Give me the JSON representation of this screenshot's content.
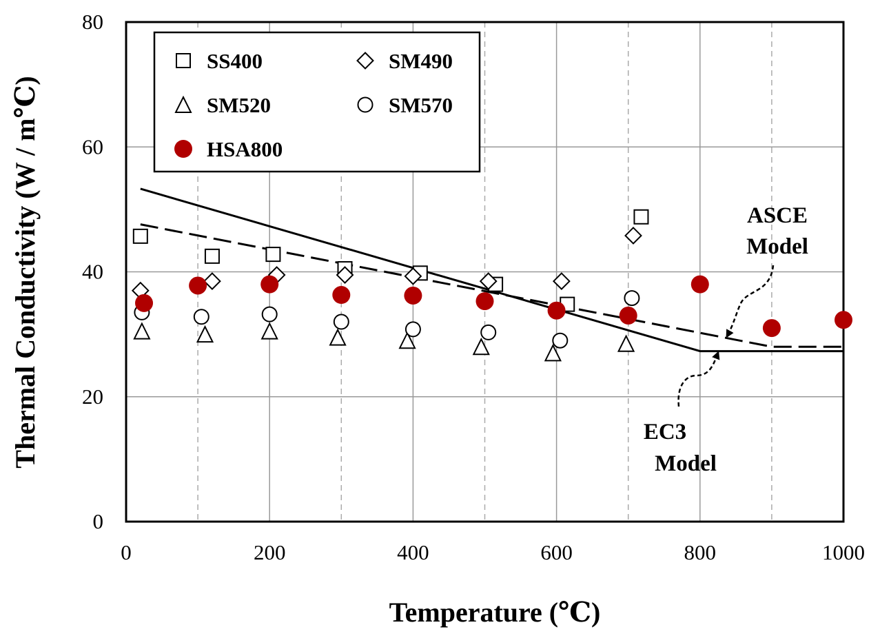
{
  "chart_data": {
    "type": "scatter",
    "xlabel": "Temperature (℃)",
    "ylabel": "Thermal Conductivity (W / m℃)",
    "xlim": [
      0,
      1000
    ],
    "ylim": [
      0,
      80
    ],
    "x_ticks": [
      0,
      200,
      400,
      600,
      800,
      1000
    ],
    "y_ticks": [
      0,
      20,
      40,
      60,
      80
    ],
    "grid": {
      "solid_x": [
        200,
        400,
        600,
        800
      ],
      "dashed_x": [
        100,
        300,
        500,
        700,
        900
      ],
      "solid_y": [
        20,
        40,
        60
      ]
    },
    "legend_position": "top-left",
    "series": [
      {
        "name": "SS400",
        "marker": "square",
        "points": [
          [
            20,
            45.7
          ],
          [
            120,
            42.5
          ],
          [
            205,
            42.8
          ],
          [
            305,
            40.5
          ],
          [
            410,
            39.8
          ],
          [
            515,
            38.0
          ],
          [
            615,
            34.8
          ],
          [
            718,
            48.8
          ]
        ]
      },
      {
        "name": "SM490",
        "marker": "diamond",
        "points": [
          [
            20,
            37.0
          ],
          [
            120,
            38.5
          ],
          [
            210,
            39.5
          ],
          [
            305,
            39.5
          ],
          [
            400,
            39.3
          ],
          [
            505,
            38.5
          ],
          [
            607,
            38.5
          ],
          [
            707,
            45.8
          ]
        ]
      },
      {
        "name": "SM520",
        "marker": "triangle",
        "points": [
          [
            22,
            30.5
          ],
          [
            110,
            30.0
          ],
          [
            200,
            30.5
          ],
          [
            295,
            29.5
          ],
          [
            392,
            29.0
          ],
          [
            495,
            28.0
          ],
          [
            595,
            27.0
          ],
          [
            697,
            28.5
          ]
        ]
      },
      {
        "name": "SM570",
        "marker": "circle",
        "points": [
          [
            22,
            33.5
          ],
          [
            105,
            32.8
          ],
          [
            200,
            33.2
          ],
          [
            300,
            32.0
          ],
          [
            400,
            30.8
          ],
          [
            505,
            30.3
          ],
          [
            605,
            29.0
          ],
          [
            705,
            35.8
          ]
        ]
      },
      {
        "name": "HSA800",
        "marker": "filled-circle",
        "color": "#b00000",
        "points": [
          [
            25,
            35.0
          ],
          [
            100,
            37.8
          ],
          [
            200,
            38.0
          ],
          [
            300,
            36.3
          ],
          [
            400,
            36.2
          ],
          [
            500,
            35.3
          ],
          [
            600,
            33.8
          ],
          [
            700,
            33.0
          ],
          [
            800,
            38.0
          ],
          [
            900,
            31.0
          ],
          [
            1000,
            32.3
          ]
        ]
      }
    ],
    "lines": [
      {
        "label_lines": [
          "EC3",
          "Model"
        ],
        "style": "solid",
        "points": [
          [
            20,
            53.3
          ],
          [
            800,
            27.3
          ],
          [
            1000,
            27.3
          ]
        ]
      },
      {
        "label_lines": [
          "ASCE",
          "Model"
        ],
        "style": "dashed",
        "points": [
          [
            20,
            47.6
          ],
          [
            900,
            28.0
          ],
          [
            1000,
            28.0
          ]
        ]
      }
    ]
  }
}
